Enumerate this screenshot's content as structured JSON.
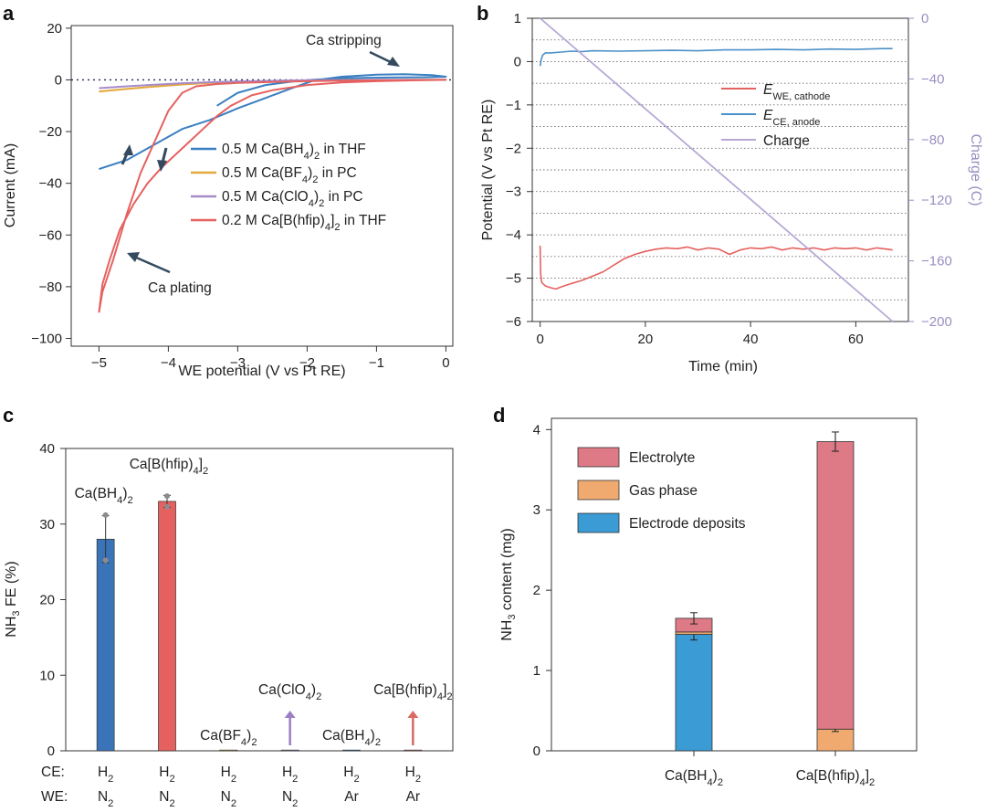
{
  "chart_data": [
    {
      "panel": "a",
      "type": "line",
      "xlabel": "WE potential (V vs Pt RE)",
      "ylabel": "Current (mA)",
      "xlim": [
        -5.4,
        0.1
      ],
      "ylim": [
        -103,
        21
      ],
      "xticks": [
        -5,
        -4,
        -3,
        -2,
        -1,
        0
      ],
      "yticks": [
        20,
        0,
        -20,
        -40,
        -60,
        -80,
        -100
      ],
      "series": [
        {
          "name": "0.5 M Ca(BH₄)₂ in THF",
          "color": "#3a7fc1",
          "x": [
            -5.0,
            -4.6,
            -4.2,
            -3.8,
            -3.4,
            -3.0,
            -2.6,
            -2.2,
            -1.9,
            -1.5,
            -1.0,
            -0.6,
            -0.2,
            0.0,
            -0.3,
            -0.8,
            -1.2,
            -1.6,
            -1.9,
            -2.2,
            -2.6,
            -3.0,
            -3.3
          ],
          "y": [
            -34.5,
            -31,
            -25,
            -19,
            -15.5,
            -11,
            -7,
            -3,
            -0.2,
            1.2,
            2,
            2.2,
            1.8,
            1.2,
            1,
            0.9,
            0.8,
            0.5,
            0.1,
            -0.6,
            -2,
            -5,
            -10
          ]
        },
        {
          "name": "0.5 M Ca(BF₄)₂ in PC",
          "color": "#e3a83a",
          "x": [
            -5.0,
            -4.6,
            -4.2,
            -3.8,
            -3.4,
            -3.0,
            -2.6,
            -2.2,
            -1.8,
            -1.4,
            -1.0,
            -0.5,
            0.0
          ],
          "y": [
            -4.5,
            -3.5,
            -2.6,
            -1.8,
            -1.2,
            -0.8,
            -0.5,
            -0.3,
            -0.2,
            -0.1,
            -0.1,
            0,
            0
          ]
        },
        {
          "name": "0.5 M Ca(ClO₄)₂ in PC",
          "color": "#a78bc9",
          "x": [
            -5.0,
            -4.6,
            -4.2,
            -3.8,
            -3.4,
            -3.0,
            -2.6,
            -2.2,
            -1.8,
            -1.4,
            -1.0,
            -0.5,
            0.0
          ],
          "y": [
            -3.2,
            -2.5,
            -1.9,
            -1.3,
            -0.9,
            -0.6,
            -0.4,
            -0.2,
            -0.1,
            -0.1,
            0,
            0,
            0
          ]
        },
        {
          "name": "0.2 M Ca[B(hfip)₄]₂ in THF",
          "color": "#e5615f",
          "x": [
            -5.0,
            -4.95,
            -4.85,
            -4.7,
            -4.5,
            -4.3,
            -4.1,
            -3.9,
            -3.7,
            -3.5,
            -3.3,
            -3.1,
            -2.8,
            -2.5,
            -2.0,
            -1.5,
            -1.0,
            -0.5,
            0.0,
            -0.5,
            -1.0,
            -1.5,
            -2.0,
            -2.5,
            -3.0,
            -3.3,
            -3.6,
            -3.8,
            -4.0,
            -4.2,
            -4.4,
            -4.6,
            -4.8,
            -4.95,
            -5.0
          ],
          "y": [
            -90,
            -79,
            -70,
            -58,
            -48,
            -40,
            -34,
            -29,
            -24,
            -19,
            -14,
            -10,
            -6,
            -4,
            -2,
            -1,
            -0.5,
            -0.2,
            0,
            -0.1,
            -0.2,
            -0.3,
            -0.5,
            -0.8,
            -1.2,
            -1.6,
            -2.5,
            -5,
            -12,
            -24,
            -36,
            -52,
            -70,
            -82,
            -90
          ]
        }
      ],
      "annotations": [
        "Ca stripping",
        "Ca plating"
      ],
      "reference_line": {
        "y": 0,
        "style": "dotted"
      }
    },
    {
      "panel": "b",
      "type": "line",
      "xlabel": "Time (min)",
      "ylabel": "Potential (V vs Pt RE)",
      "y2label": "Charge (C)",
      "xlim": [
        -1.5,
        70
      ],
      "ylim": [
        -6,
        1
      ],
      "y2lim": [
        -200,
        0
      ],
      "xticks": [
        0,
        20,
        40,
        60
      ],
      "yticks": [
        1,
        0,
        -1,
        -2,
        -3,
        -4,
        -5,
        -6
      ],
      "y2ticks": [
        0,
        -40,
        -80,
        -120,
        -160,
        -200
      ],
      "series": [
        {
          "name_main": "E",
          "name_sub": "WE, cathode",
          "color": "#e5615f",
          "axis": "left",
          "x": [
            0,
            0.1,
            0.3,
            1,
            2,
            3,
            4,
            6,
            8,
            10,
            12,
            14,
            16,
            18,
            20,
            22,
            24,
            26,
            28,
            30,
            32,
            34,
            36,
            38,
            40,
            42,
            44,
            46,
            48,
            50,
            52,
            54,
            56,
            58,
            60,
            62,
            64,
            66,
            67
          ],
          "y": [
            -4.25,
            -4.9,
            -5.1,
            -5.18,
            -5.22,
            -5.25,
            -5.2,
            -5.12,
            -5.05,
            -4.95,
            -4.85,
            -4.7,
            -4.55,
            -4.45,
            -4.38,
            -4.33,
            -4.3,
            -4.32,
            -4.28,
            -4.35,
            -4.3,
            -4.33,
            -4.45,
            -4.35,
            -4.3,
            -4.32,
            -4.28,
            -4.35,
            -4.3,
            -4.33,
            -4.3,
            -4.35,
            -4.3,
            -4.32,
            -4.3,
            -4.35,
            -4.3,
            -4.33,
            -4.35
          ]
        },
        {
          "name_main": "E",
          "name_sub": "CE, anode",
          "color": "#4a90c8",
          "axis": "left",
          "x": [
            0,
            0.2,
            0.5,
            1,
            2,
            4,
            6,
            8,
            10,
            15,
            20,
            25,
            30,
            35,
            40,
            45,
            50,
            55,
            60,
            65,
            67
          ],
          "y": [
            -0.1,
            0.05,
            0.15,
            0.2,
            0.2,
            0.22,
            0.24,
            0.23,
            0.25,
            0.24,
            0.25,
            0.26,
            0.25,
            0.27,
            0.27,
            0.28,
            0.27,
            0.29,
            0.28,
            0.3,
            0.3
          ]
        },
        {
          "name_main": "Charge",
          "name_sub": "",
          "color": "#b7a9d6",
          "axis": "right",
          "x": [
            0,
            67
          ],
          "y": [
            0,
            -200
          ]
        }
      ],
      "reference_lines_y": [
        0.5,
        0,
        -0.5,
        -1,
        -1.5,
        -2,
        -2.5,
        -3,
        -3.5,
        -4,
        -4.5,
        -5,
        -5.5
      ]
    },
    {
      "panel": "c",
      "type": "bar",
      "ylabel": "NH₃ FE (%)",
      "ylim": [
        0,
        40
      ],
      "yticks": [
        0,
        10,
        20,
        30,
        40
      ],
      "row_labels": [
        "CE:",
        "WE:"
      ],
      "categories": [
        {
          "ce": "H₂",
          "we": "N₂",
          "value": 28,
          "error": 3.1,
          "points": [
            31.2,
            25.2
          ],
          "color": "#3b73b9",
          "label": "Ca(BH₄)₂",
          "label_color": "#3b73b9",
          "arrow": false
        },
        {
          "ce": "H₂",
          "we": "N₂",
          "value": 33,
          "error": 0.8,
          "points": [
            33.7,
            32.3
          ],
          "color": "#e5615f",
          "label": "Ca[B(hfip)₄]₂",
          "label_color": "#e5615f",
          "arrow": false
        },
        {
          "ce": "H₂",
          "we": "N₂",
          "value": 0.1,
          "error": 0,
          "points": [],
          "color": "#e3a83a",
          "label": "Ca(BF₄)₂",
          "label_color": "#d8a21a",
          "arrow": false
        },
        {
          "ce": "H₂",
          "we": "N₂",
          "value": 0.1,
          "error": 0,
          "points": [],
          "color": "#9b7fc5",
          "label": "Ca(ClO₄)₂",
          "label_color": "#9b7fc5",
          "arrow": true
        },
        {
          "ce": "H₂",
          "we": "Ar",
          "value": 0.1,
          "error": 0,
          "points": [],
          "color": "#3b73b9",
          "label": "Ca(BH₄)₂",
          "label_color": "#3b73b9",
          "arrow": false
        },
        {
          "ce": "H₂",
          "we": "Ar",
          "value": 0.1,
          "error": 0,
          "points": [],
          "color": "#d96a64",
          "label": "Ca[B(hfip)₄]₂",
          "label_color": "#d96a64",
          "arrow": true
        }
      ]
    },
    {
      "panel": "d",
      "type": "bar",
      "stacked": true,
      "ylabel": "NH₃ content (mg)",
      "ylim": [
        0,
        4
      ],
      "yticks": [
        0,
        1,
        2,
        3,
        4
      ],
      "categories": [
        "Ca(BH₄)₂",
        "Ca[B(hfip)₄]₂"
      ],
      "series": [
        {
          "name": "Electrode deposits",
          "color": "#3a9bd5",
          "values": [
            1.45,
            0
          ],
          "errors": [
            0.07,
            0
          ]
        },
        {
          "name": "Gas phase",
          "color": "#f0aa70",
          "values": [
            0.03,
            0.27
          ],
          "errors": [
            0,
            0.03
          ]
        },
        {
          "name": "Electrolyte",
          "color": "#dd7a86",
          "values": [
            0.17,
            3.58
          ],
          "errors": [
            0.07,
            0.12
          ]
        }
      ],
      "legend_order": [
        "Electrolyte",
        "Gas phase",
        "Electrode deposits"
      ]
    }
  ]
}
